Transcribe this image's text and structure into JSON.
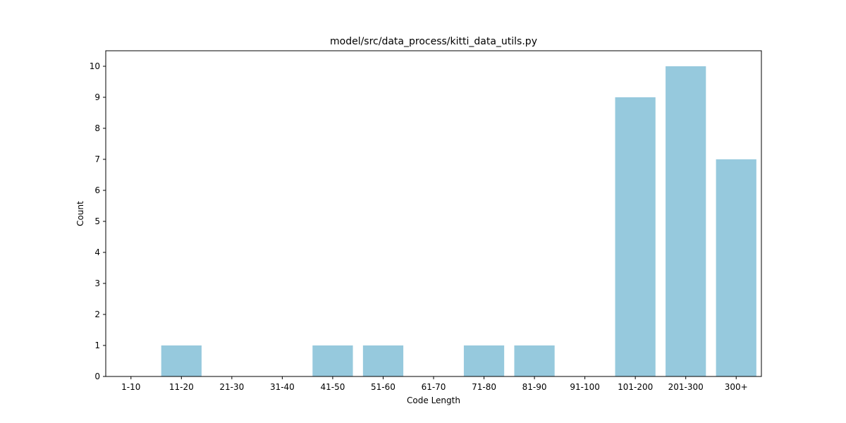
{
  "chart_data": {
    "type": "bar",
    "title": "model/src/data_process/kitti_data_utils.py",
    "xlabel": "Code Length",
    "ylabel": "Count",
    "categories": [
      "1-10",
      "11-20",
      "21-30",
      "31-40",
      "41-50",
      "51-60",
      "61-70",
      "71-80",
      "81-90",
      "91-100",
      "101-200",
      "201-300",
      "300+"
    ],
    "values": [
      0,
      1,
      0,
      0,
      1,
      1,
      0,
      1,
      1,
      0,
      9,
      10,
      7
    ],
    "ylim": [
      0,
      10.5
    ],
    "yticks": [
      0,
      1,
      2,
      3,
      4,
      5,
      6,
      7,
      8,
      9,
      10
    ],
    "grid": false,
    "bar_color": "#96c9dd"
  }
}
